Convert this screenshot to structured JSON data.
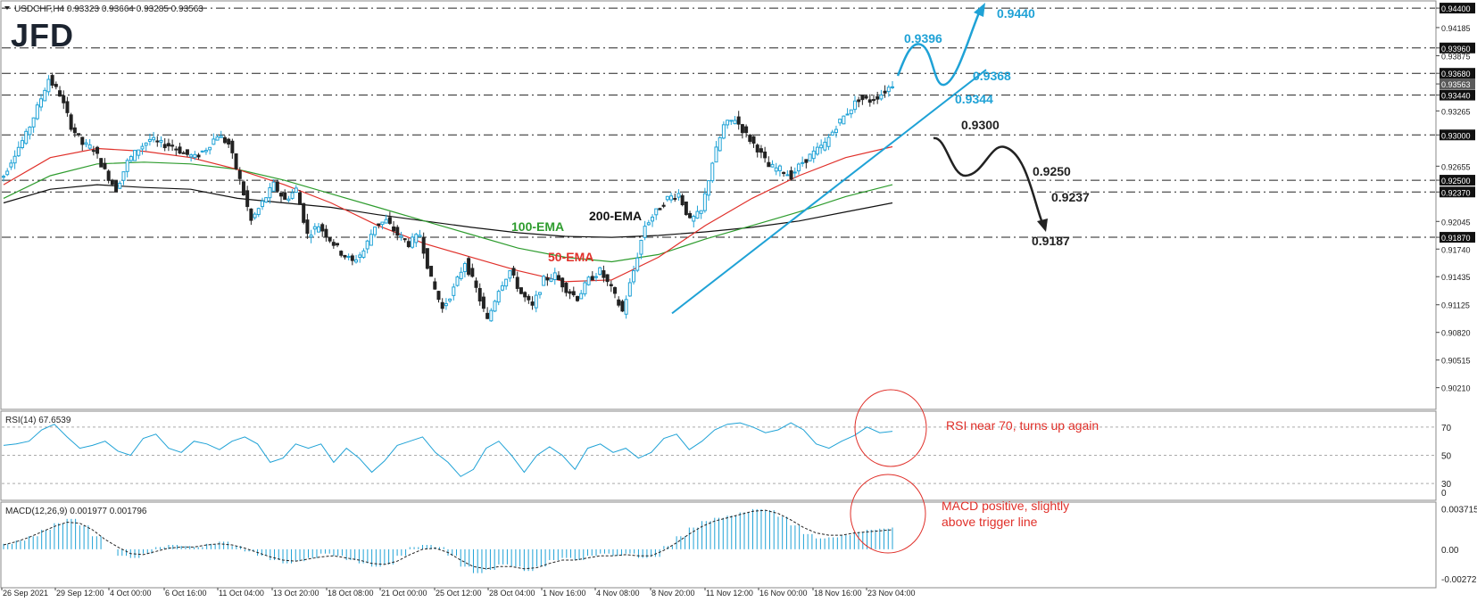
{
  "header": {
    "symbol_info": "USDCHF,H4  0.93323 0.93664 0.93285 0.93563",
    "logo": "JFD",
    "dropdown_icon": "triangle-down-icon"
  },
  "chart_data": [
    {
      "type": "candlestick",
      "title": "USDCHF,H4",
      "ohlc_text": "0.93323 0.93664 0.93285 0.93563",
      "ylim": [
        0.9,
        0.9445
      ],
      "y_ticks": [
        "0.94400",
        "0.94185",
        "0.93960",
        "0.93875",
        "0.93680",
        "0.93563",
        "0.93440",
        "0.93265",
        "0.93000",
        "0.92655",
        "0.92500",
        "0.92370",
        "0.92045",
        "0.91870",
        "0.91740",
        "0.91435",
        "0.91125",
        "0.90820",
        "0.90515",
        "0.90210"
      ],
      "x_ticks": [
        "26 Sep 2021",
        "29 Sep 12:00",
        "4 Oct 00:00",
        "6 Oct 16:00",
        "11 Oct 04:00",
        "13 Oct 20:00",
        "18 Oct 08:00",
        "21 Oct 00:00",
        "25 Oct 12:00",
        "28 Oct 04:00",
        "1 Nov 16:00",
        "4 Nov 08:00",
        "8 Nov 20:00",
        "11 Nov 12:00",
        "16 Nov 00:00",
        "18 Nov 16:00",
        "23 Nov 04:00"
      ],
      "close_path": [
        0.9255,
        0.928,
        0.93,
        0.933,
        0.9362,
        0.9345,
        0.931,
        0.929,
        0.9285,
        0.926,
        0.924,
        0.927,
        0.9285,
        0.9295,
        0.929,
        0.9288,
        0.928,
        0.9275,
        0.9285,
        0.93,
        0.929,
        0.925,
        0.9205,
        0.9225,
        0.9245,
        0.9228,
        0.924,
        0.919,
        0.92,
        0.9185,
        0.917,
        0.916,
        0.9172,
        0.92,
        0.9205,
        0.919,
        0.918,
        0.919,
        0.914,
        0.9108,
        0.913,
        0.916,
        0.913,
        0.9095,
        0.913,
        0.915,
        0.9125,
        0.911,
        0.914,
        0.9145,
        0.913,
        0.912,
        0.914,
        0.915,
        0.913,
        0.9105,
        0.915,
        0.92,
        0.9215,
        0.923,
        0.9235,
        0.9205,
        0.9215,
        0.927,
        0.931,
        0.9318,
        0.93,
        0.9285,
        0.9265,
        0.9262,
        0.9255,
        0.927,
        0.928,
        0.929,
        0.931,
        0.9325,
        0.934,
        0.9338,
        0.9345,
        0.9356
      ],
      "ema": [
        {
          "name": "200-EMA",
          "color": "#111111",
          "values": [
            0.9225,
            0.924,
            0.9245,
            0.9242,
            0.924,
            0.923,
            0.9225,
            0.922,
            0.9212,
            0.9205,
            0.9198,
            0.9192,
            0.9188,
            0.9187,
            0.9189,
            0.9193,
            0.9198,
            0.9205,
            0.9215,
            0.9225
          ]
        },
        {
          "name": "100-EMA",
          "color": "#2e9c2e",
          "values": [
            0.923,
            0.9255,
            0.9268,
            0.927,
            0.9268,
            0.9262,
            0.925,
            0.9235,
            0.922,
            0.9205,
            0.919,
            0.9175,
            0.9165,
            0.916,
            0.9168,
            0.9185,
            0.92,
            0.9215,
            0.9232,
            0.9245
          ]
        },
        {
          "name": "50-EMA",
          "color": "#e0302a",
          "values": [
            0.9245,
            0.9275,
            0.9285,
            0.9282,
            0.9275,
            0.9262,
            0.9245,
            0.9225,
            0.92,
            0.918,
            0.9165,
            0.915,
            0.9138,
            0.914,
            0.9165,
            0.92,
            0.923,
            0.9255,
            0.9275,
            0.9287
          ]
        }
      ],
      "levels": [
        {
          "value": 0.944,
          "label": "0.94400"
        },
        {
          "value": 0.9396,
          "label": "0.93960"
        },
        {
          "value": 0.9368,
          "label": "0.93680"
        },
        {
          "value": 0.9344,
          "label": "0.93440"
        },
        {
          "value": 0.93,
          "label": "0.93000"
        },
        {
          "value": 0.925,
          "label": "0.92500"
        },
        {
          "value": 0.9237,
          "label": "0.92370"
        },
        {
          "value": 0.9187,
          "label": "0.91870"
        }
      ],
      "current_price": "0.93563",
      "annotations": {
        "bull": [
          "0.9440",
          "0.9396",
          "0.9368",
          "0.9344"
        ],
        "bear": [
          "0.9300",
          "0.9250",
          "0.9237",
          "0.9187"
        ],
        "ema_labels": [
          "200-EMA",
          "100-EMA",
          "50-EMA"
        ]
      },
      "colors": {
        "up": "#1fa2d6",
        "down": "#222222",
        "bull": "#1fa2d6",
        "bear": "#222222"
      }
    },
    {
      "type": "line",
      "title": "RSI(14) 67.6539",
      "ylim": [
        20,
        80
      ],
      "levels": [
        70,
        50,
        30
      ],
      "y_ticks": [
        "70",
        "50",
        "30"
      ],
      "y_extra": "0",
      "series": [
        {
          "values": [
            57,
            58,
            60,
            68,
            72,
            63,
            55,
            57,
            60,
            53,
            50,
            62,
            65,
            55,
            52,
            60,
            58,
            54,
            60,
            63,
            58,
            45,
            48,
            58,
            55,
            58,
            45,
            55,
            48,
            38,
            46,
            57,
            60,
            63,
            52,
            45,
            35,
            40,
            55,
            60,
            50,
            38,
            50,
            56,
            50,
            40,
            55,
            58,
            52,
            55,
            48,
            52,
            62,
            65,
            54,
            60,
            68,
            72,
            73,
            70,
            66,
            68,
            73,
            68,
            58,
            55,
            60,
            64,
            70,
            66,
            67
          ]
        }
      ],
      "annotation": "RSI near 70, turns up again",
      "color": "#1fa2d6"
    },
    {
      "type": "bar",
      "title": "MACD(12,26,9) 0.001977 0.001796",
      "ylim": [
        -0.0033,
        0.0041
      ],
      "y_ticks": [
        "0.003715",
        "0.00",
        "-0.002725"
      ],
      "histogram": [
        0.0005,
        0.0008,
        0.0012,
        0.0018,
        0.0024,
        0.0028,
        0.0022,
        0.0012,
        0.0,
        -0.0006,
        -0.0008,
        -0.0004,
        0.0002,
        0.0004,
        0.0003,
        0.0002,
        0.0005,
        0.0007,
        0.0003,
        -0.0002,
        -0.0006,
        -0.001,
        -0.0013,
        -0.0011,
        -0.0008,
        -0.0004,
        -0.0006,
        -0.001,
        -0.0013,
        -0.0016,
        -0.0014,
        -0.0006,
        0.0002,
        0.0004,
        0.0002,
        -0.0006,
        -0.0016,
        -0.0022,
        -0.0019,
        -0.0014,
        -0.0016,
        -0.002,
        -0.0016,
        -0.001,
        -0.0008,
        -0.001,
        -0.0006,
        -0.0004,
        -0.0006,
        -0.0004,
        -0.0008,
        -0.0007,
        0.0003,
        0.0012,
        0.002,
        0.0026,
        0.0029,
        0.0031,
        0.0034,
        0.0037,
        0.0036,
        0.003,
        0.0022,
        0.0014,
        0.001,
        0.0011,
        0.0013,
        0.0016,
        0.0018,
        0.0019,
        0.002
      ],
      "signal": [
        0.0004,
        0.0007,
        0.0011,
        0.0016,
        0.0021,
        0.0025,
        0.0024,
        0.0018,
        0.0009,
        0.0002,
        -0.0004,
        -0.0005,
        -0.0002,
        0.0001,
        0.0002,
        0.0002,
        0.0004,
        0.0005,
        0.0004,
        0.0001,
        -0.0003,
        -0.0007,
        -0.001,
        -0.0011,
        -0.0009,
        -0.0007,
        -0.0006,
        -0.0008,
        -0.001,
        -0.0013,
        -0.0014,
        -0.0011,
        -0.0005,
        0.0,
        0.0001,
        -0.0003,
        -0.001,
        -0.0016,
        -0.0018,
        -0.0016,
        -0.0016,
        -0.0018,
        -0.0017,
        -0.0013,
        -0.001,
        -0.001,
        -0.0008,
        -0.0006,
        -0.0006,
        -0.0005,
        -0.0006,
        -0.0006,
        -0.0001,
        0.0006,
        0.0014,
        0.0021,
        0.0026,
        0.0029,
        0.0032,
        0.0035,
        0.0036,
        0.0033,
        0.0027,
        0.002,
        0.0015,
        0.0013,
        0.0013,
        0.0015,
        0.0016,
        0.0017,
        0.0018
      ],
      "annotation": [
        "MACD positive, slightly",
        "above trigger line"
      ],
      "color": "#1fa2d6"
    }
  ]
}
